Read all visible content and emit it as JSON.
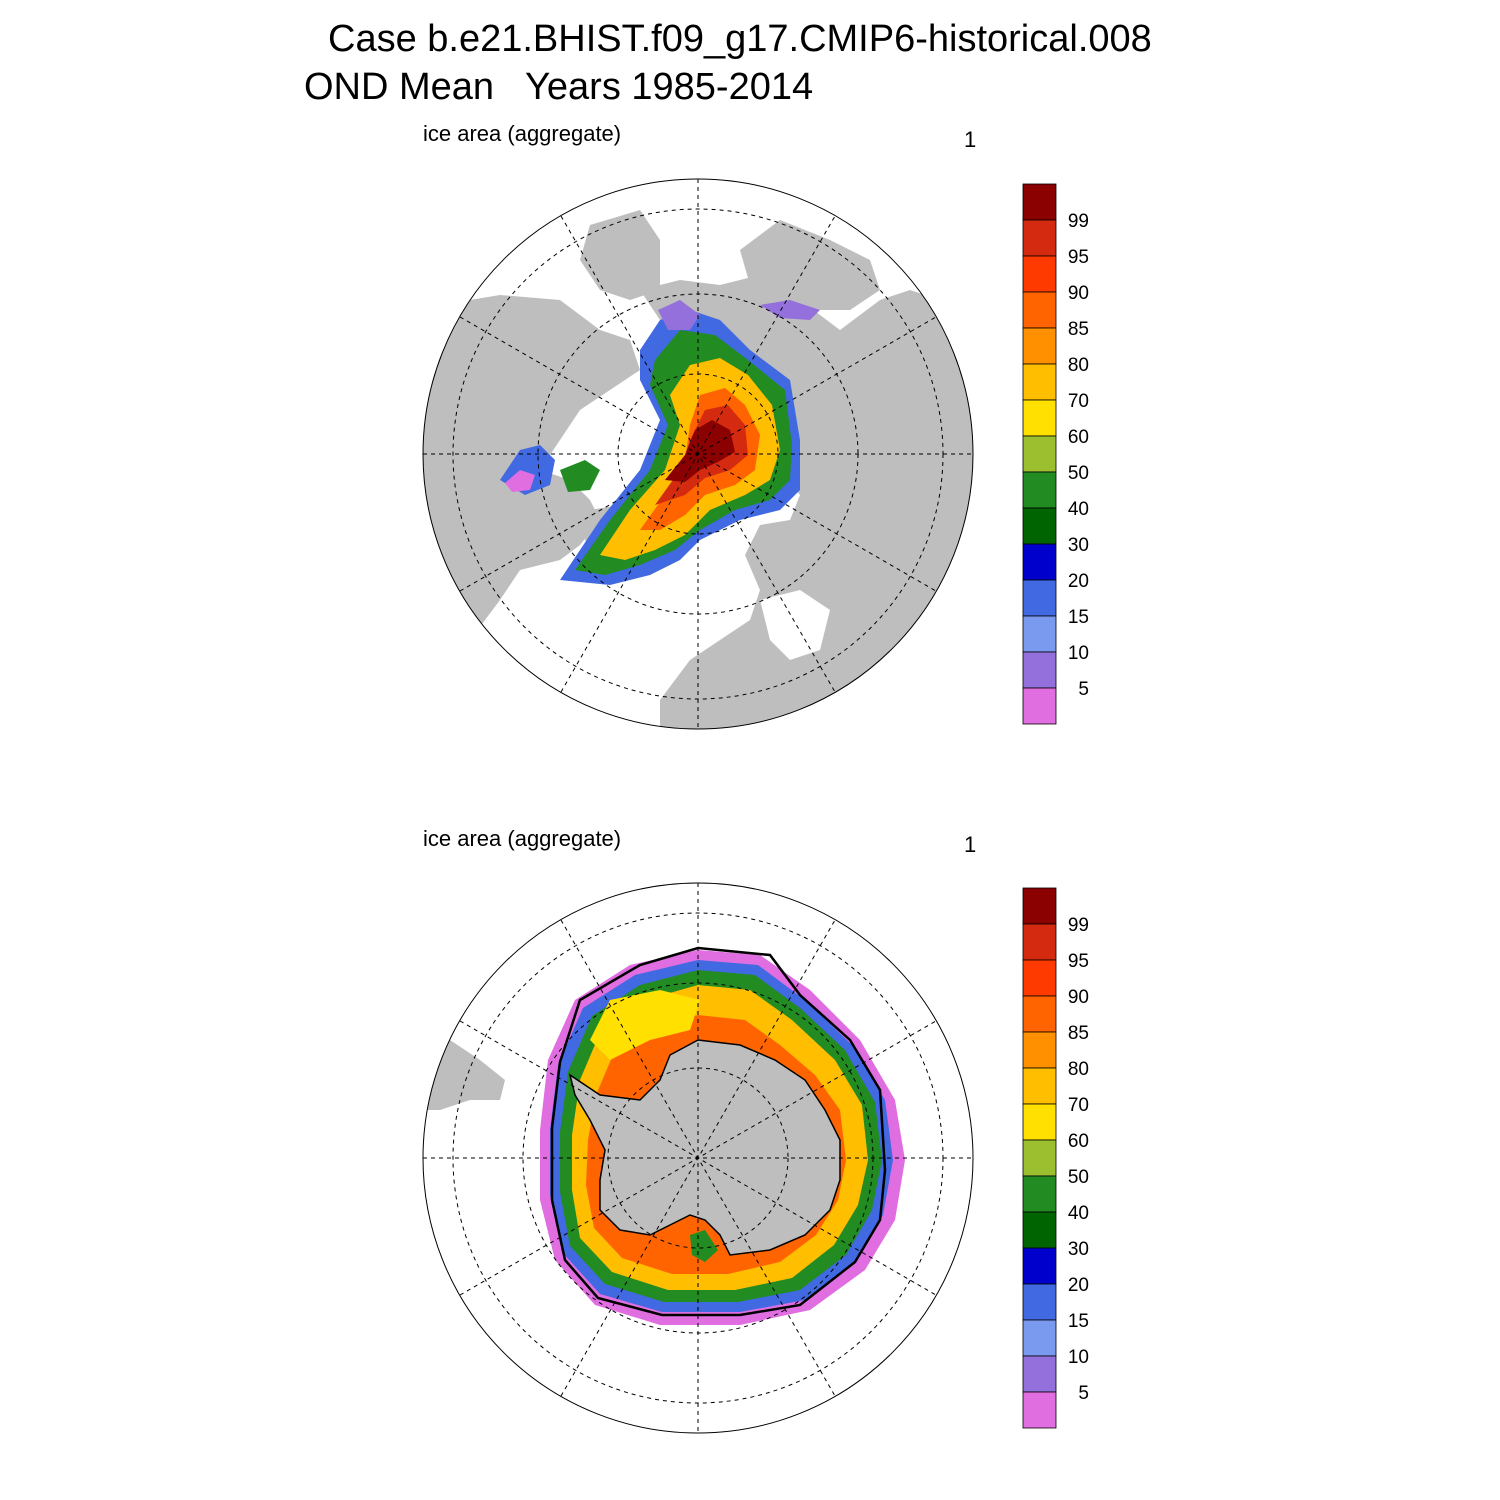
{
  "title": {
    "line1": "Case b.e21.BHIST.f09_g17.CMIP6-historical.008",
    "line2": "OND Mean   Years 1985-2014"
  },
  "panels": [
    {
      "id": "north",
      "left_title": "ice area  (aggregate)",
      "right_title": "1"
    },
    {
      "id": "south",
      "left_title": "ice area  (aggregate)",
      "right_title": "1"
    }
  ],
  "colorbar": {
    "labels": [
      "99",
      "95",
      "90",
      "85",
      "80",
      "70",
      "60",
      "50",
      "40",
      "30",
      "20",
      "15",
      "10",
      "5"
    ],
    "colors": [
      "#8b0000",
      "#d42a10",
      "#ff3a00",
      "#ff6400",
      "#ff9000",
      "#ffbe00",
      "#ffe000",
      "#9bbf2e",
      "#228b22",
      "#006400",
      "#0000cd",
      "#4169e1",
      "#7a9af0",
      "#9370db",
      "#e06ee0"
    ]
  },
  "map_colors": {
    "land": "#bebebe",
    "ocean": "#ffffff"
  }
}
